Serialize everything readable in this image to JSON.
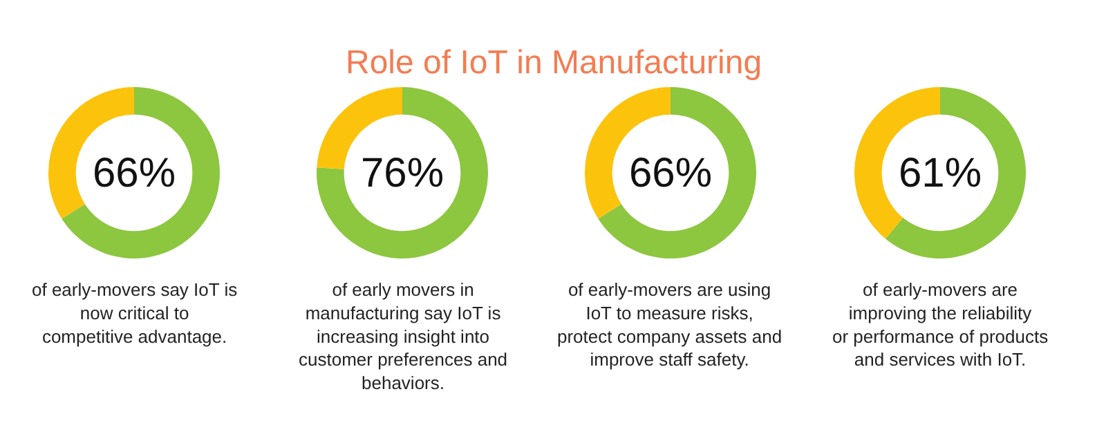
{
  "chart_data": [
    {
      "type": "donut",
      "title": "Role of IoT in Manufacturing",
      "categories": [
        null,
        null
      ],
      "values": [
        66,
        34
      ],
      "colors": [
        "#8dc63f",
        "#fcc30d"
      ],
      "value_labels": [
        "66%",
        null
      ],
      "annotations": [
        "of early-movers say IoT is now critical to competitive advantage."
      ]
    },
    {
      "type": "donut",
      "categories": [
        null,
        null
      ],
      "values": [
        76,
        24
      ],
      "colors": [
        "#8dc63f",
        "#fcc30d"
      ],
      "value_labels": [
        "76%",
        null
      ],
      "annotations": [
        "of early movers in manufacturing say IoT is increasing insight into customer preferences and behaviors."
      ]
    },
    {
      "type": "donut",
      "categories": [
        null,
        null
      ],
      "values": [
        66,
        34
      ],
      "colors": [
        "#8dc63f",
        "#fcc30d"
      ],
      "value_labels": [
        "66%",
        null
      ],
      "annotations": [
        "of early-movers are using IoT to measure risks, protect company assets and improve staff safety."
      ]
    },
    {
      "type": "donut",
      "categories": [
        null,
        null
      ],
      "values": [
        61,
        39
      ],
      "colors": [
        "#8dc63f",
        "#fcc30d"
      ],
      "value_labels": [
        "61%",
        null
      ],
      "annotations": [
        "of early-movers are improving the reliability or performance of products and services with IoT."
      ]
    }
  ]
}
